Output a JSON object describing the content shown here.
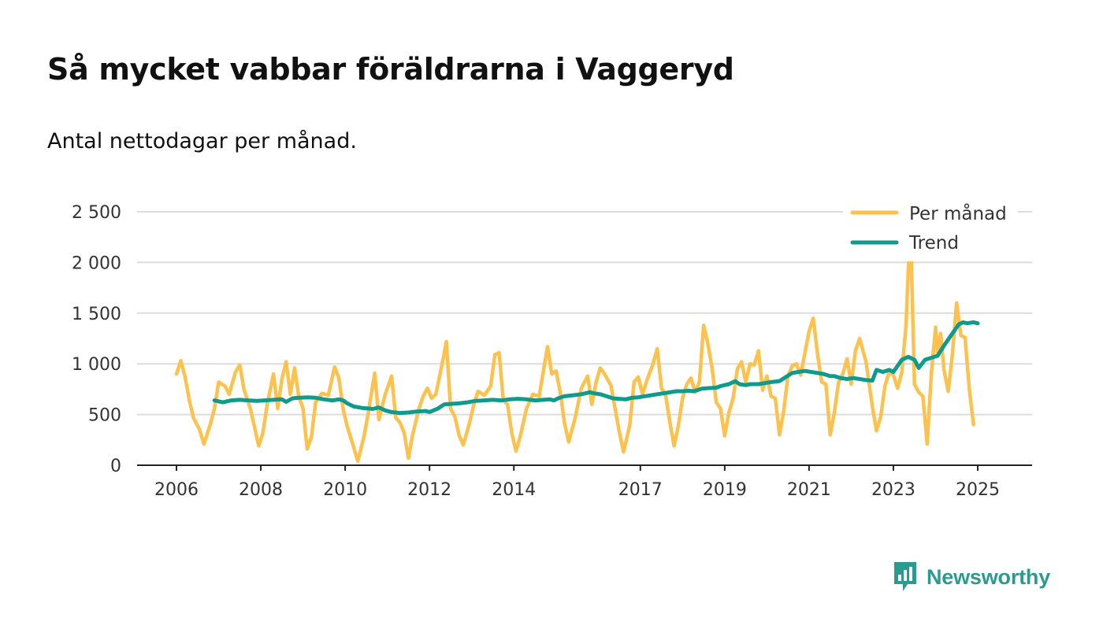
{
  "title": "Så mycket vabbar föräldrarna i Vaggeryd",
  "subtitle": "Antal nettodagar per månad.",
  "brand": {
    "name": "Newsworthy",
    "icon": "bar-chart-speech-bubble-icon",
    "color": "#2b9a91"
  },
  "chart_data": {
    "type": "line",
    "title": "Så mycket vabbar föräldrarna i Vaggeryd",
    "subtitle": "Antal nettodagar per månad.",
    "xlabel": "",
    "ylabel": "",
    "ylim": [
      0,
      2500
    ],
    "xlim": [
      2005.75,
      2026.0
    ],
    "grid": true,
    "legend_position": "top-right",
    "yticks": [
      0,
      500,
      1000,
      1500,
      2000,
      2500
    ],
    "ytick_labels": [
      "0",
      "500",
      "1 000",
      "1 500",
      "2 000",
      "2 500"
    ],
    "xticks": [
      2006,
      2008,
      2010,
      2012,
      2014,
      2017,
      2019,
      2021,
      2023,
      2025
    ],
    "xtick_labels": [
      "2006",
      "2008",
      "2010",
      "2012",
      "2014",
      "2017",
      "2019",
      "2021",
      "2023",
      "2025"
    ],
    "series": [
      {
        "name": "Per månad",
        "color": "#fcc24d",
        "points": [
          [
            2006.0,
            900
          ],
          [
            2006.1,
            1030
          ],
          [
            2006.2,
            880
          ],
          [
            2006.3,
            650
          ],
          [
            2006.4,
            470
          ],
          [
            2006.55,
            350
          ],
          [
            2006.65,
            210
          ],
          [
            2006.8,
            400
          ],
          [
            2006.9,
            560
          ],
          [
            2007.0,
            820
          ],
          [
            2007.15,
            780
          ],
          [
            2007.25,
            700
          ],
          [
            2007.4,
            920
          ],
          [
            2007.5,
            990
          ],
          [
            2007.6,
            750
          ],
          [
            2007.75,
            560
          ],
          [
            2007.85,
            380
          ],
          [
            2007.95,
            190
          ],
          [
            2008.05,
            320
          ],
          [
            2008.15,
            600
          ],
          [
            2008.3,
            900
          ],
          [
            2008.4,
            560
          ],
          [
            2008.5,
            850
          ],
          [
            2008.6,
            1020
          ],
          [
            2008.7,
            700
          ],
          [
            2008.8,
            960
          ],
          [
            2008.9,
            680
          ],
          [
            2009.0,
            560
          ],
          [
            2009.1,
            160
          ],
          [
            2009.2,
            280
          ],
          [
            2009.3,
            620
          ],
          [
            2009.45,
            710
          ],
          [
            2009.6,
            690
          ],
          [
            2009.75,
            970
          ],
          [
            2009.85,
            860
          ],
          [
            2009.95,
            560
          ],
          [
            2010.05,
            380
          ],
          [
            2010.15,
            250
          ],
          [
            2010.3,
            40
          ],
          [
            2010.45,
            290
          ],
          [
            2010.55,
            520
          ],
          [
            2010.7,
            910
          ],
          [
            2010.8,
            450
          ],
          [
            2010.95,
            700
          ],
          [
            2011.1,
            880
          ],
          [
            2011.2,
            470
          ],
          [
            2011.3,
            420
          ],
          [
            2011.4,
            320
          ],
          [
            2011.5,
            70
          ],
          [
            2011.6,
            300
          ],
          [
            2011.75,
            560
          ],
          [
            2011.85,
            680
          ],
          [
            2011.95,
            760
          ],
          [
            2012.05,
            660
          ],
          [
            2012.15,
            700
          ],
          [
            2012.3,
            1000
          ],
          [
            2012.4,
            1220
          ],
          [
            2012.5,
            560
          ],
          [
            2012.6,
            480
          ],
          [
            2012.7,
            300
          ],
          [
            2012.8,
            200
          ],
          [
            2012.95,
            420
          ],
          [
            2013.05,
            600
          ],
          [
            2013.15,
            730
          ],
          [
            2013.3,
            690
          ],
          [
            2013.45,
            780
          ],
          [
            2013.55,
            1090
          ],
          [
            2013.65,
            1110
          ],
          [
            2013.75,
            640
          ],
          [
            2013.85,
            600
          ],
          [
            2013.95,
            320
          ],
          [
            2014.05,
            140
          ],
          [
            2014.15,
            280
          ],
          [
            2014.3,
            560
          ],
          [
            2014.45,
            700
          ],
          [
            2014.6,
            680
          ],
          [
            2014.7,
            930
          ],
          [
            2014.8,
            1170
          ],
          [
            2014.9,
            900
          ],
          [
            2015.0,
            930
          ],
          [
            2015.1,
            720
          ],
          [
            2015.2,
            420
          ],
          [
            2015.3,
            230
          ],
          [
            2015.45,
            460
          ],
          [
            2015.6,
            760
          ],
          [
            2015.75,
            880
          ],
          [
            2015.85,
            600
          ],
          [
            2015.95,
            820
          ],
          [
            2016.05,
            960
          ],
          [
            2016.15,
            900
          ],
          [
            2016.3,
            790
          ],
          [
            2016.4,
            560
          ],
          [
            2016.5,
            330
          ],
          [
            2016.6,
            130
          ],
          [
            2016.75,
            400
          ],
          [
            2016.85,
            820
          ],
          [
            2016.95,
            870
          ],
          [
            2017.05,
            700
          ],
          [
            2017.15,
            830
          ],
          [
            2017.3,
            1000
          ],
          [
            2017.4,
            1150
          ],
          [
            2017.5,
            760
          ],
          [
            2017.6,
            690
          ],
          [
            2017.7,
            420
          ],
          [
            2017.8,
            190
          ],
          [
            2017.9,
            390
          ],
          [
            2018.0,
            660
          ],
          [
            2018.1,
            800
          ],
          [
            2018.2,
            860
          ],
          [
            2018.3,
            720
          ],
          [
            2018.4,
            820
          ],
          [
            2018.5,
            1380
          ],
          [
            2018.6,
            1200
          ],
          [
            2018.7,
            960
          ],
          [
            2018.8,
            620
          ],
          [
            2018.9,
            560
          ],
          [
            2019.0,
            290
          ],
          [
            2019.1,
            520
          ],
          [
            2019.2,
            660
          ],
          [
            2019.3,
            950
          ],
          [
            2019.4,
            1020
          ],
          [
            2019.5,
            820
          ],
          [
            2019.6,
            1000
          ],
          [
            2019.7,
            990
          ],
          [
            2019.8,
            1130
          ],
          [
            2019.9,
            740
          ],
          [
            2020.0,
            880
          ],
          [
            2020.1,
            680
          ],
          [
            2020.2,
            660
          ],
          [
            2020.3,
            300
          ],
          [
            2020.4,
            540
          ],
          [
            2020.5,
            880
          ],
          [
            2020.6,
            980
          ],
          [
            2020.7,
            1000
          ],
          [
            2020.8,
            890
          ],
          [
            2020.9,
            1100
          ],
          [
            2021.0,
            1320
          ],
          [
            2021.1,
            1450
          ],
          [
            2021.2,
            1100
          ],
          [
            2021.3,
            820
          ],
          [
            2021.4,
            800
          ],
          [
            2021.5,
            300
          ],
          [
            2021.6,
            520
          ],
          [
            2021.7,
            820
          ],
          [
            2021.8,
            900
          ],
          [
            2021.9,
            1050
          ],
          [
            2022.0,
            800
          ],
          [
            2022.1,
            1130
          ],
          [
            2022.2,
            1250
          ],
          [
            2022.35,
            1020
          ],
          [
            2022.5,
            580
          ],
          [
            2022.6,
            340
          ],
          [
            2022.7,
            480
          ],
          [
            2022.8,
            780
          ],
          [
            2022.9,
            920
          ],
          [
            2023.0,
            890
          ],
          [
            2023.1,
            760
          ],
          [
            2023.2,
            920
          ],
          [
            2023.3,
            1380
          ],
          [
            2023.4,
            2420
          ],
          [
            2023.5,
            800
          ],
          [
            2023.6,
            720
          ],
          [
            2023.7,
            680
          ],
          [
            2023.8,
            210
          ],
          [
            2023.9,
            900
          ],
          [
            2024.0,
            1360
          ],
          [
            2024.05,
            1110
          ],
          [
            2024.12,
            1300
          ],
          [
            2024.2,
            940
          ],
          [
            2024.3,
            730
          ],
          [
            2024.4,
            1100
          ],
          [
            2024.5,
            1600
          ],
          [
            2024.6,
            1280
          ],
          [
            2024.7,
            1260
          ],
          [
            2024.8,
            750
          ],
          [
            2024.9,
            400
          ]
        ]
      },
      {
        "name": "Trend",
        "color": "#109a8c",
        "points": [
          [
            2006.9,
            640
          ],
          [
            2007.1,
            620
          ],
          [
            2007.3,
            640
          ],
          [
            2007.5,
            645
          ],
          [
            2007.7,
            640
          ],
          [
            2007.9,
            635
          ],
          [
            2008.1,
            640
          ],
          [
            2008.3,
            645
          ],
          [
            2008.5,
            650
          ],
          [
            2008.6,
            625
          ],
          [
            2008.75,
            660
          ],
          [
            2008.9,
            665
          ],
          [
            2009.1,
            670
          ],
          [
            2009.3,
            665
          ],
          [
            2009.5,
            650
          ],
          [
            2009.7,
            640
          ],
          [
            2009.85,
            650
          ],
          [
            2009.95,
            640
          ],
          [
            2010.05,
            610
          ],
          [
            2010.2,
            580
          ],
          [
            2010.4,
            565
          ],
          [
            2010.55,
            560
          ],
          [
            2010.65,
            555
          ],
          [
            2010.8,
            570
          ],
          [
            2010.95,
            540
          ],
          [
            2011.1,
            525
          ],
          [
            2011.3,
            515
          ],
          [
            2011.5,
            520
          ],
          [
            2011.7,
            530
          ],
          [
            2011.9,
            535
          ],
          [
            2012.0,
            525
          ],
          [
            2012.2,
            560
          ],
          [
            2012.35,
            600
          ],
          [
            2012.5,
            605
          ],
          [
            2012.7,
            610
          ],
          [
            2012.9,
            620
          ],
          [
            2013.1,
            635
          ],
          [
            2013.3,
            640
          ],
          [
            2013.5,
            645
          ],
          [
            2013.7,
            640
          ],
          [
            2013.9,
            650
          ],
          [
            2014.1,
            655
          ],
          [
            2014.3,
            650
          ],
          [
            2014.5,
            640
          ],
          [
            2014.7,
            645
          ],
          [
            2014.85,
            650
          ],
          [
            2014.95,
            640
          ],
          [
            2015.05,
            660
          ],
          [
            2015.2,
            680
          ],
          [
            2015.4,
            690
          ],
          [
            2015.6,
            700
          ],
          [
            2015.8,
            720
          ],
          [
            2015.9,
            710
          ],
          [
            2016.05,
            700
          ],
          [
            2016.2,
            680
          ],
          [
            2016.35,
            660
          ],
          [
            2016.5,
            655
          ],
          [
            2016.65,
            650
          ],
          [
            2016.8,
            665
          ],
          [
            2016.95,
            670
          ],
          [
            2017.1,
            680
          ],
          [
            2017.25,
            690
          ],
          [
            2017.4,
            700
          ],
          [
            2017.55,
            710
          ],
          [
            2017.7,
            720
          ],
          [
            2017.85,
            730
          ],
          [
            2018.0,
            730
          ],
          [
            2018.15,
            735
          ],
          [
            2018.25,
            730
          ],
          [
            2018.35,
            740
          ],
          [
            2018.45,
            755
          ],
          [
            2018.6,
            760
          ],
          [
            2018.8,
            765
          ],
          [
            2018.9,
            780
          ],
          [
            2019.0,
            790
          ],
          [
            2019.1,
            800
          ],
          [
            2019.25,
            830
          ],
          [
            2019.35,
            800
          ],
          [
            2019.5,
            790
          ],
          [
            2019.6,
            800
          ],
          [
            2019.8,
            800
          ],
          [
            2019.95,
            810
          ],
          [
            2020.1,
            820
          ],
          [
            2020.3,
            830
          ],
          [
            2020.45,
            870
          ],
          [
            2020.6,
            910
          ],
          [
            2020.75,
            920
          ],
          [
            2020.9,
            930
          ],
          [
            2021.05,
            920
          ],
          [
            2021.2,
            910
          ],
          [
            2021.35,
            900
          ],
          [
            2021.5,
            880
          ],
          [
            2021.6,
            880
          ],
          [
            2021.75,
            860
          ],
          [
            2021.9,
            850
          ],
          [
            2022.05,
            860
          ],
          [
            2022.2,
            850
          ],
          [
            2022.35,
            840
          ],
          [
            2022.5,
            835
          ],
          [
            2022.6,
            940
          ],
          [
            2022.75,
            920
          ],
          [
            2022.9,
            940
          ],
          [
            2023.0,
            920
          ],
          [
            2023.1,
            980
          ],
          [
            2023.2,
            1040
          ],
          [
            2023.35,
            1070
          ],
          [
            2023.5,
            1040
          ],
          [
            2023.6,
            960
          ],
          [
            2023.75,
            1040
          ],
          [
            2023.9,
            1060
          ],
          [
            2024.05,
            1080
          ],
          [
            2024.2,
            1180
          ],
          [
            2024.35,
            1270
          ],
          [
            2024.45,
            1330
          ],
          [
            2024.55,
            1390
          ],
          [
            2024.65,
            1410
          ],
          [
            2024.75,
            1400
          ],
          [
            2024.9,
            1410
          ],
          [
            2025.0,
            1400
          ]
        ]
      }
    ]
  }
}
